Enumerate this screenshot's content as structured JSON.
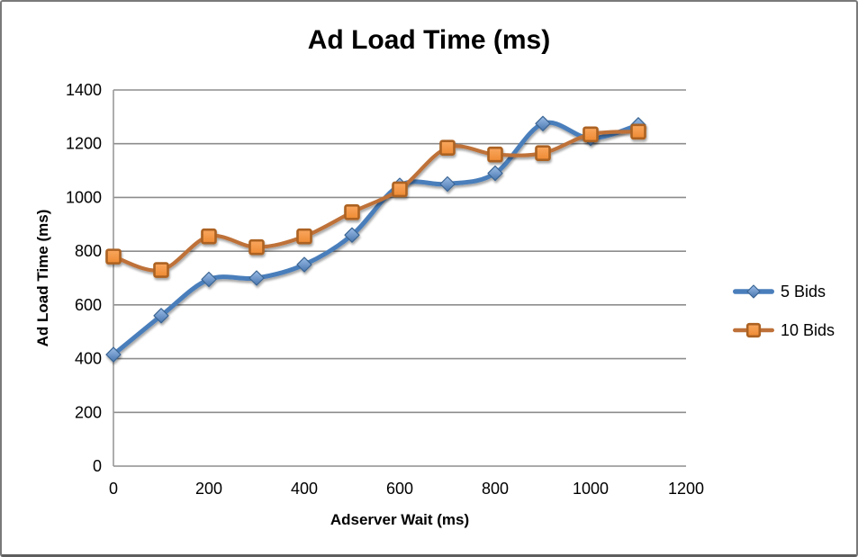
{
  "chart_data": {
    "type": "line",
    "title": "Ad Load Time (ms)",
    "xlabel": "Adserver Wait (ms)",
    "ylabel": "Ad Load Time (ms)",
    "x": [
      0,
      100,
      200,
      300,
      400,
      500,
      600,
      700,
      800,
      900,
      1000,
      1100
    ],
    "series": [
      {
        "name": "5 Bids",
        "marker": "diamond",
        "line_color": "#4A7EBB",
        "marker_fill_top": "#9CBEE8",
        "marker_fill_bottom": "#4875AE",
        "marker_stroke": "#3A6593",
        "values": [
          415,
          560,
          695,
          700,
          750,
          860,
          1045,
          1050,
          1090,
          1275,
          1220,
          1270
        ]
      },
      {
        "name": "10 Bids",
        "marker": "square",
        "line_color": "#BE7139",
        "marker_fill_top": "#F9A75F",
        "marker_fill_bottom": "#EE8A33",
        "marker_stroke": "#AC6222",
        "values": [
          780,
          730,
          855,
          815,
          855,
          945,
          1030,
          1185,
          1160,
          1165,
          1235,
          1245
        ]
      }
    ],
    "xticks": [
      0,
      200,
      400,
      600,
      800,
      1000,
      1200
    ],
    "yticks": [
      0,
      200,
      400,
      600,
      800,
      1000,
      1200,
      1400
    ],
    "xlim": [
      0,
      1200
    ],
    "ylim": [
      0,
      1400
    ],
    "grid": "horizontal",
    "smoothed_lines": true,
    "legend_position": "right"
  }
}
